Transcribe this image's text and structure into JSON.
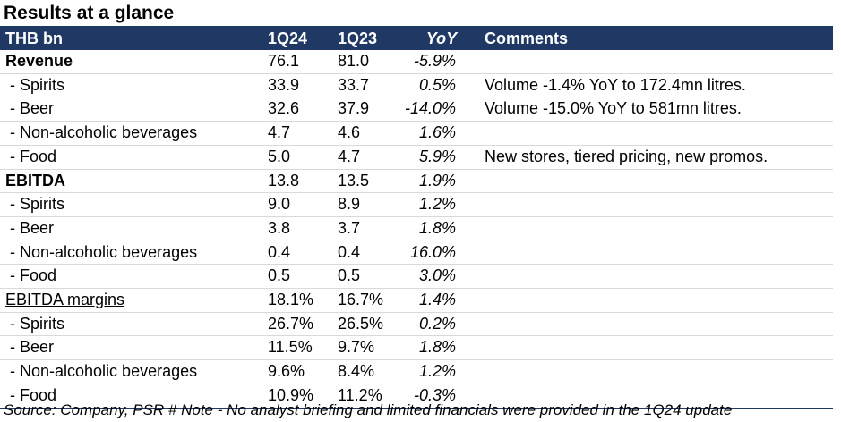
{
  "title": "Results at a glance",
  "header": {
    "label": "THB bn",
    "q1": "1Q24",
    "q2": "1Q23",
    "yoy": "YoY",
    "comments": "Comments"
  },
  "rows": [
    {
      "label": "Revenue",
      "q1": "76.1",
      "q2": "81.0",
      "yoy": "-5.9%",
      "comment": "",
      "style": "bold"
    },
    {
      "label": " - Spirits",
      "q1": "33.9",
      "q2": "33.7",
      "yoy": "0.5%",
      "comment": "Volume -1.4% YoY to 172.4mn litres.",
      "style": "normal"
    },
    {
      "label": " - Beer",
      "q1": "32.6",
      "q2": "37.9",
      "yoy": "-14.0%",
      "comment": "Volume -15.0% YoY to 581mn litres.",
      "style": "normal"
    },
    {
      "label": " - Non-alcoholic beverages",
      "q1": "4.7",
      "q2": "4.6",
      "yoy": "1.6%",
      "comment": "",
      "style": "normal"
    },
    {
      "label": " - Food",
      "q1": "5.0",
      "q2": "4.7",
      "yoy": "5.9%",
      "comment": "New stores, tiered pricing, new promos.",
      "style": "normal"
    },
    {
      "label": "EBITDA",
      "q1": "13.8",
      "q2": "13.5",
      "yoy": "1.9%",
      "comment": "",
      "style": "bold"
    },
    {
      "label": " - Spirits",
      "q1": "9.0",
      "q2": "8.9",
      "yoy": "1.2%",
      "comment": "",
      "style": "normal"
    },
    {
      "label": " - Beer",
      "q1": "3.8",
      "q2": "3.7",
      "yoy": "1.8%",
      "comment": "",
      "style": "normal"
    },
    {
      "label": " - Non-alcoholic beverages",
      "q1": "0.4",
      "q2": "0.4",
      "yoy": "16.0%",
      "comment": "",
      "style": "normal"
    },
    {
      "label": " - Food",
      "q1": "0.5",
      "q2": "0.5",
      "yoy": "3.0%",
      "comment": "",
      "style": "normal"
    },
    {
      "label": "EBITDA margins",
      "q1": "18.1%",
      "q2": "16.7%",
      "yoy": "1.4%",
      "comment": "",
      "style": "underline"
    },
    {
      "label": " - Spirits",
      "q1": "26.7%",
      "q2": "26.5%",
      "yoy": "0.2%",
      "comment": "",
      "style": "normal"
    },
    {
      "label": " - Beer",
      "q1": "11.5%",
      "q2": "9.7%",
      "yoy": "1.8%",
      "comment": "",
      "style": "normal"
    },
    {
      "label": " - Non-alcoholic beverages",
      "q1": "9.6%",
      "q2": "8.4%",
      "yoy": "1.2%",
      "comment": "",
      "style": "normal"
    },
    {
      "label": " - Food",
      "q1": "10.9%",
      "q2": "11.2%",
      "yoy": "-0.3%",
      "comment": "",
      "style": "normal"
    }
  ],
  "source": "Source: Company, PSR # Note - No analyst briefing and limited financials were provided in the 1Q24 update",
  "colors": {
    "header_bg": "#1f3864",
    "header_text": "#ffffff"
  }
}
